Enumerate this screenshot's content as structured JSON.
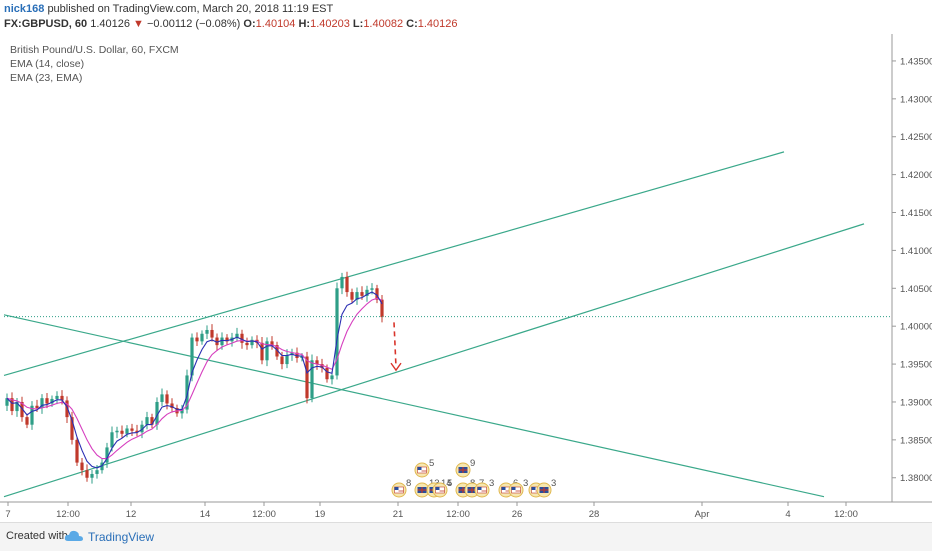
{
  "header": {
    "user": "nick168",
    "published": "published on TradingView.com, March 20, 2018 11:19 EST",
    "symbol": "FX:GBPUSD, 60",
    "last": "1.40126",
    "change": "−0.00112 (−0.08%)",
    "open_label": "O:",
    "open": "1.40104",
    "high_label": "H:",
    "high": "1.40203",
    "low_label": "L:",
    "low": "1.40082",
    "close_label": "C:",
    "close": "1.40126"
  },
  "footer": {
    "created_with": "Created with",
    "brand": "TradingView"
  },
  "colors": {
    "up": "#2e9e87",
    "down": "#c0392b",
    "ema14": "#2b2fb3",
    "ema23": "#d63fbf",
    "trend": "#3aa88a",
    "arrow": "#d9342b"
  },
  "chart_data": {
    "type": "candlestick",
    "title": "British Pound/U.S. Dollar, 60, FXCM",
    "legend": [
      "EMA (14, close)",
      "EMA (23, EMA)"
    ],
    "legend_position": "top-left",
    "y_ticks": [
      "1.43500",
      "1.43000",
      "1.42500",
      "1.42000",
      "1.41500",
      "1.41000",
      "1.40500",
      "1.40000",
      "1.39500",
      "1.39000",
      "1.38500",
      "1.38000"
    ],
    "ylim": [
      1.3768,
      1.4375
    ],
    "x_ticks": [
      "7",
      "12:00",
      "12",
      "14",
      "12:00",
      "19",
      "21",
      "12:00",
      "26",
      "28",
      "Apr",
      "4",
      "12:00"
    ],
    "last_price": 1.40126,
    "price_path": [
      [
        0,
        1.3895
      ],
      [
        5,
        1.3905
      ],
      [
        10,
        1.3888
      ],
      [
        15,
        1.39
      ],
      [
        20,
        1.388
      ],
      [
        25,
        1.387
      ],
      [
        30,
        1.3895
      ],
      [
        35,
        1.3892
      ],
      [
        40,
        1.3905
      ],
      [
        45,
        1.3898
      ],
      [
        50,
        1.3904
      ],
      [
        55,
        1.3908
      ],
      [
        60,
        1.3902
      ],
      [
        65,
        1.388
      ],
      [
        70,
        1.385
      ],
      [
        75,
        1.382
      ],
      [
        80,
        1.381
      ],
      [
        85,
        1.38
      ],
      [
        90,
        1.3805
      ],
      [
        95,
        1.381
      ],
      [
        100,
        1.382
      ],
      [
        105,
        1.384
      ],
      [
        110,
        1.386
      ],
      [
        115,
        1.3862
      ],
      [
        120,
        1.3858
      ],
      [
        125,
        1.3865
      ],
      [
        130,
        1.3862
      ],
      [
        135,
        1.386
      ],
      [
        140,
        1.387
      ],
      [
        145,
        1.388
      ],
      [
        150,
        1.387
      ],
      [
        155,
        1.39
      ],
      [
        160,
        1.391
      ],
      [
        165,
        1.3898
      ],
      [
        170,
        1.3892
      ],
      [
        175,
        1.3885
      ],
      [
        180,
        1.389
      ],
      [
        185,
        1.3935
      ],
      [
        190,
        1.3985
      ],
      [
        195,
        1.398
      ],
      [
        200,
        1.399
      ],
      [
        205,
        1.3995
      ],
      [
        210,
        1.3985
      ],
      [
        215,
        1.3975
      ],
      [
        220,
        1.3985
      ],
      [
        225,
        1.398
      ],
      [
        230,
        1.3985
      ],
      [
        235,
        1.399
      ],
      [
        240,
        1.3978
      ],
      [
        245,
        1.3975
      ],
      [
        250,
        1.3982
      ],
      [
        255,
        1.3978
      ],
      [
        260,
        1.3955
      ],
      [
        265,
        1.398
      ],
      [
        270,
        1.3975
      ],
      [
        275,
        1.396
      ],
      [
        280,
        1.395
      ],
      [
        285,
        1.3962
      ],
      [
        290,
        1.3965
      ],
      [
        295,
        1.3958
      ],
      [
        300,
        1.396
      ],
      [
        305,
        1.3905
      ],
      [
        310,
        1.3955
      ],
      [
        315,
        1.395
      ],
      [
        320,
        1.3945
      ],
      [
        325,
        1.393
      ],
      [
        330,
        1.3935
      ],
      [
        335,
        1.405
      ],
      [
        340,
        1.4065
      ],
      [
        345,
        1.4045
      ],
      [
        350,
        1.4035
      ],
      [
        355,
        1.4045
      ],
      [
        360,
        1.404
      ],
      [
        365,
        1.4048
      ],
      [
        370,
        1.405
      ],
      [
        375,
        1.4035
      ],
      [
        380,
        1.4012
      ]
    ],
    "trendlines": [
      {
        "name": "upper-channel",
        "from": [
          0,
          1.3935
        ],
        "to": [
          780,
          1.423
        ]
      },
      {
        "name": "lower-channel",
        "from": [
          0,
          1.3775
        ],
        "to": [
          860,
          1.4135
        ]
      },
      {
        "name": "descending-line",
        "from": [
          0,
          1.4015
        ],
        "to": [
          820,
          1.3775
        ]
      }
    ],
    "projection_arrow": {
      "from": [
        390,
        1.4005
      ],
      "to": [
        392,
        1.3942
      ]
    },
    "event_markers": [
      {
        "x": 395,
        "row": 2,
        "label": "8",
        "flag": "us"
      },
      {
        "x": 418,
        "row": 1,
        "label": "5",
        "flag": "us"
      },
      {
        "x": 418,
        "row": 2,
        "label": "13",
        "flag": "uk"
      },
      {
        "x": 430,
        "row": 2,
        "label": "14",
        "flag": "uk"
      },
      {
        "x": 436,
        "row": 2,
        "label": "5",
        "flag": "us"
      },
      {
        "x": 459,
        "row": 1,
        "label": "9",
        "flag": "uk"
      },
      {
        "x": 459,
        "row": 2,
        "label": "8",
        "flag": "uk"
      },
      {
        "x": 468,
        "row": 2,
        "label": "7",
        "flag": "uk"
      },
      {
        "x": 478,
        "row": 2,
        "label": "3",
        "flag": "us"
      },
      {
        "x": 502,
        "row": 2,
        "label": "6",
        "flag": "us"
      },
      {
        "x": 512,
        "row": 2,
        "label": "3",
        "flag": "us"
      },
      {
        "x": 532,
        "row": 2,
        "label": "",
        "flag": "us"
      },
      {
        "x": 540,
        "row": 2,
        "label": "3",
        "flag": "uk"
      }
    ]
  }
}
